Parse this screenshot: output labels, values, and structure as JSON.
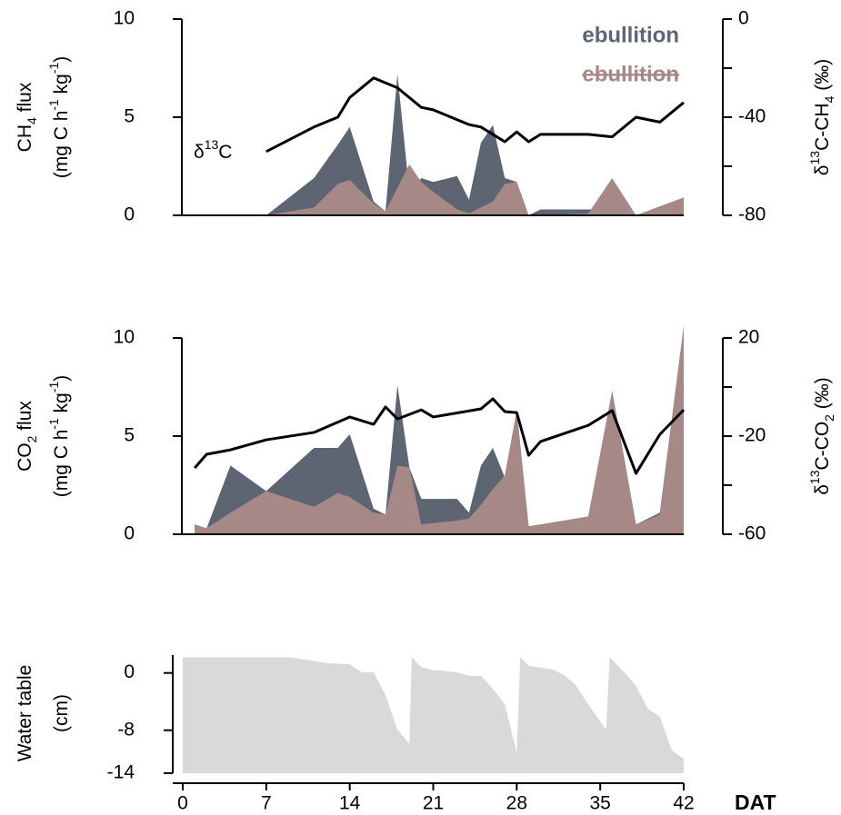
{
  "chart_data": [
    {
      "type": "area",
      "xlim": [
        0,
        42
      ],
      "ylim": [
        0,
        10
      ],
      "yticks": [
        0,
        5,
        10
      ],
      "y2lim": [
        -80,
        0
      ],
      "y2ticks": [
        -80,
        -40,
        0
      ],
      "y2minor": [
        -60,
        -20
      ],
      "ylabel": [
        [
          {
            "text": "CH"
          },
          {
            "text": "4",
            "shift": "sub"
          },
          {
            "text": " flux"
          }
        ],
        [
          {
            "text": "(mg C h"
          },
          {
            "text": "-1",
            "shift": "super"
          },
          {
            "text": " kg"
          },
          {
            "text": "-1",
            "shift": "super"
          },
          {
            "text": ")"
          }
        ]
      ],
      "y2label": [
        {
          "text": "δ"
        },
        {
          "text": "13",
          "shift": "super"
        },
        {
          "text": "C-CH"
        },
        {
          "text": "4",
          "shift": "sub"
        },
        {
          "text": " (‰)"
        }
      ],
      "annotation": [
        {
          "text": "δ"
        },
        {
          "text": "13",
          "shift": "super"
        },
        {
          "text": "C"
        }
      ],
      "series": [
        {
          "name": "ebullition",
          "color": "#5c6571",
          "x": [
            0,
            7,
            11,
            13,
            14,
            16,
            17,
            18,
            19,
            20,
            21,
            23,
            24,
            25,
            26,
            27,
            28,
            29,
            30,
            34,
            36,
            38,
            42
          ],
          "values": [
            0,
            0,
            1.9,
            3.6,
            4.5,
            0.7,
            0.2,
            7.2,
            1.2,
            1.9,
            1.7,
            2.0,
            0.8,
            3.7,
            4.6,
            1.9,
            1.7,
            0,
            0.3,
            0.3,
            0.3,
            0,
            0.9
          ]
        },
        {
          "name": "ebullition",
          "color": "#a68887",
          "legend_decoration": "line-through",
          "x": [
            0,
            7,
            11,
            13,
            14,
            16,
            17,
            18,
            19,
            20,
            21,
            23,
            24,
            25,
            26,
            27,
            28,
            29,
            30,
            34,
            36,
            38,
            42
          ],
          "values": [
            0,
            0,
            0.4,
            1.6,
            1.8,
            0.6,
            0.2,
            1.4,
            2.6,
            1.7,
            1.2,
            0.3,
            0.1,
            0.4,
            0.7,
            1.6,
            1.7,
            0,
            0,
            0.1,
            1.9,
            0,
            0.9
          ]
        },
        {
          "type": "line",
          "axis": "y2",
          "color": "#000000",
          "x": [
            7,
            11,
            13,
            14,
            16,
            18,
            20,
            21,
            23,
            24,
            25,
            27,
            28,
            29,
            30,
            34,
            36,
            38,
            40,
            42
          ],
          "values": [
            -54,
            -44,
            -40,
            -32,
            -24,
            -28,
            -36,
            -37,
            -41,
            -43,
            -44,
            -50,
            -46,
            -50,
            -47,
            -47,
            -48,
            -40,
            -42,
            -34
          ]
        }
      ]
    },
    {
      "type": "area",
      "xlim": [
        0,
        42
      ],
      "ylim": [
        0,
        10
      ],
      "yticks": [
        0,
        5,
        10
      ],
      "y2lim": [
        -60,
        20
      ],
      "y2ticks": [
        -60,
        -20,
        20
      ],
      "y2minor": [
        -40,
        0
      ],
      "ylabel": [
        [
          {
            "text": "CO"
          },
          {
            "text": "2",
            "shift": "sub"
          },
          {
            "text": " flux"
          }
        ],
        [
          {
            "text": "(mg C h"
          },
          {
            "text": "-1",
            "shift": "super"
          },
          {
            "text": " kg"
          },
          {
            "text": "-1",
            "shift": "super"
          },
          {
            "text": ")"
          }
        ]
      ],
      "y2label": [
        {
          "text": "δ"
        },
        {
          "text": "13",
          "shift": "super"
        },
        {
          "text": "C-CO"
        },
        {
          "text": "2",
          "shift": "sub"
        },
        {
          "text": " (‰)"
        }
      ],
      "series": [
        {
          "color": "#5c6571",
          "x": [
            1,
            2,
            4,
            7,
            11,
            13,
            14,
            16,
            17,
            18,
            19,
            20,
            23,
            24,
            25,
            26,
            27,
            28,
            29,
            34,
            36,
            38,
            40,
            42
          ],
          "values": [
            0.5,
            0.3,
            3.5,
            2.2,
            4.4,
            4.4,
            5.1,
            1.3,
            1.0,
            7.6,
            3.4,
            1.8,
            1.8,
            1.1,
            3.5,
            4.4,
            2.9,
            6.3,
            0.4,
            0.9,
            7.3,
            0.5,
            1.1,
            10.6
          ]
        },
        {
          "color": "#a68887",
          "x": [
            1,
            2,
            4,
            7,
            11,
            13,
            14,
            16,
            17,
            18,
            19,
            20,
            23,
            24,
            25,
            26,
            27,
            28,
            29,
            34,
            36,
            38,
            40,
            42
          ],
          "values": [
            0.5,
            0.3,
            1.1,
            2.2,
            1.4,
            2.1,
            1.9,
            1.1,
            1.0,
            3.5,
            3.4,
            0.5,
            0.7,
            0.8,
            1.5,
            2.3,
            3.0,
            6.3,
            0.4,
            0.9,
            7.3,
            0.5,
            1.0,
            10.6
          ]
        },
        {
          "type": "line",
          "axis": "y2",
          "color": "#000000",
          "x": [
            1,
            2,
            4,
            7,
            11,
            14,
            16,
            17,
            18,
            20,
            21,
            25,
            26,
            27,
            28,
            29,
            30,
            34,
            36,
            38,
            40,
            42
          ],
          "values": [
            -33,
            -27.4,
            -25.6,
            -21.5,
            -18.5,
            -12.2,
            -15.2,
            -8.1,
            -13,
            -9.3,
            -12.2,
            -8.9,
            -4.8,
            -10,
            -10.4,
            -27.8,
            -22.2,
            -15.6,
            -9.6,
            -35.2,
            -19.3,
            -9.3
          ]
        }
      ]
    },
    {
      "type": "area",
      "xlim": [
        0,
        42
      ],
      "xticks": [
        0,
        7,
        14,
        21,
        28,
        35,
        42
      ],
      "xlabel": "DAT",
      "ylim": [
        -14,
        2.5
      ],
      "yticks": [
        -14,
        -8,
        0
      ],
      "ylabel": [
        [
          {
            "text": "Water table"
          }
        ],
        [
          {
            "text": "(cm)"
          }
        ]
      ],
      "series": [
        {
          "color": "#d9d9d9",
          "x": [
            0,
            9,
            12,
            14,
            15,
            16,
            17,
            18,
            19,
            19.2,
            20,
            21,
            23,
            24,
            25,
            26,
            27,
            28,
            28.3,
            29,
            31,
            32,
            33,
            34,
            35.5,
            35.8,
            37,
            38,
            39,
            40,
            41,
            42
          ],
          "values": [
            2.2,
            2.2,
            1.4,
            1.2,
            0.1,
            0.1,
            -3.1,
            -7.9,
            -9.9,
            2.2,
            0.8,
            0.4,
            0.1,
            -0.4,
            -0.4,
            -2.2,
            -4.4,
            -11.1,
            2.2,
            1.0,
            0.5,
            -0.3,
            -1.8,
            -4.4,
            -7.9,
            2.2,
            0.1,
            -1.8,
            -5,
            -6.1,
            -10.8,
            -12
          ]
        }
      ]
    }
  ]
}
